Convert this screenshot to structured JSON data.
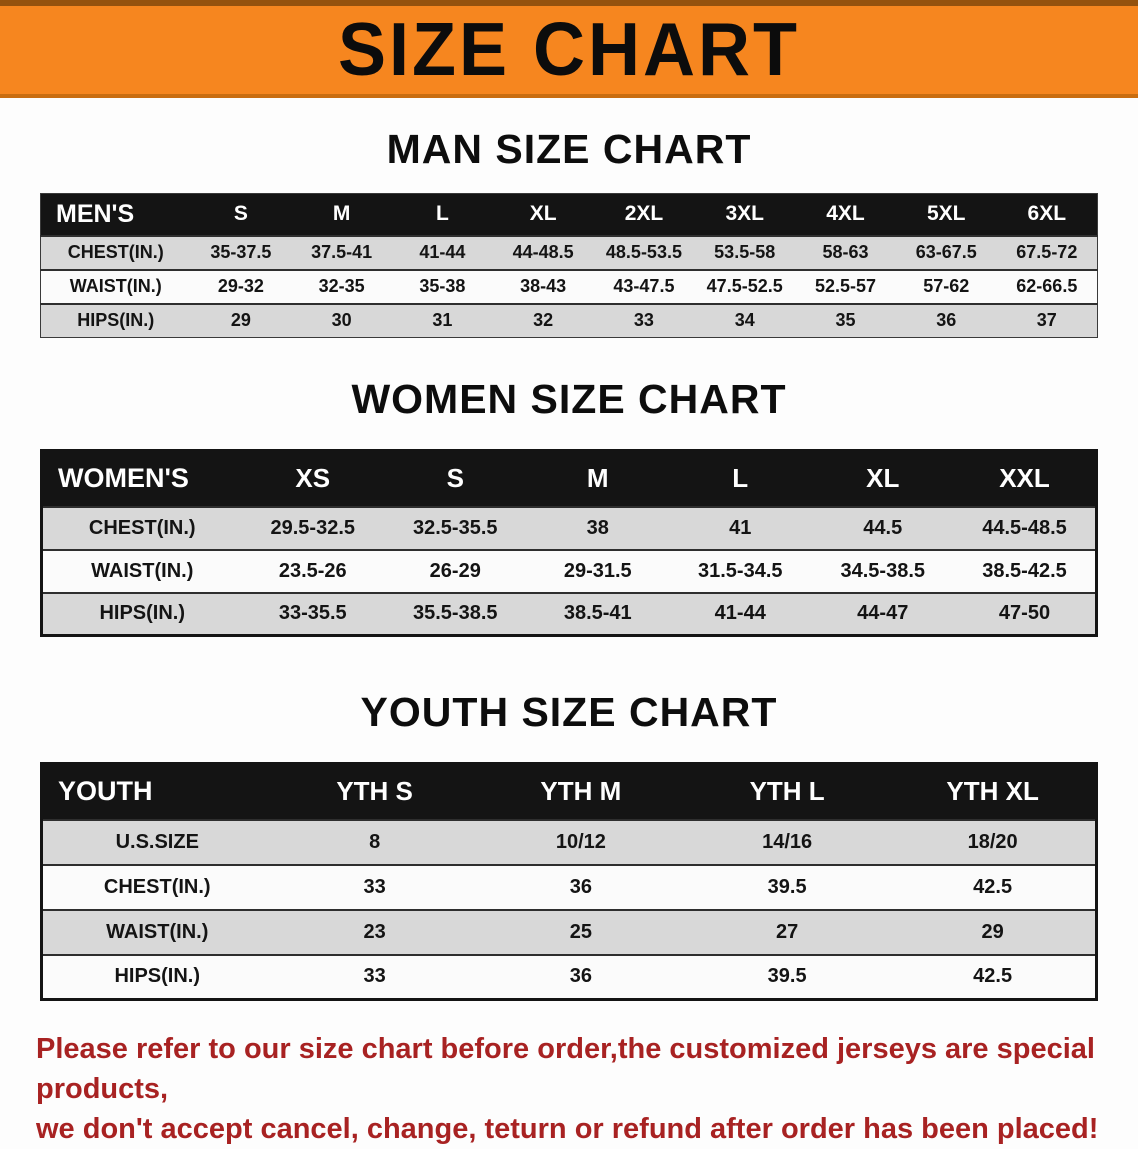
{
  "banner": {
    "title": "SIZE CHART"
  },
  "men_section": {
    "title": "MAN SIZE CHART",
    "table": {
      "header": [
        "MEN'S",
        "S",
        "M",
        "L",
        "XL",
        "2XL",
        "3XL",
        "4XL",
        "5XL",
        "6XL"
      ],
      "rows": [
        [
          "CHEST(IN.)",
          "35-37.5",
          "37.5-41",
          "41-44",
          "44-48.5",
          "48.5-53.5",
          "53.5-58",
          "58-63",
          "63-67.5",
          "67.5-72"
        ],
        [
          "WAIST(IN.)",
          "29-32",
          "32-35",
          "35-38",
          "38-43",
          "43-47.5",
          "47.5-52.5",
          "52.5-57",
          "57-62",
          "62-66.5"
        ],
        [
          "HIPS(IN.)",
          "29",
          "30",
          "31",
          "32",
          "33",
          "34",
          "35",
          "36",
          "37"
        ]
      ]
    }
  },
  "women_section": {
    "title": "WOMEN SIZE CHART",
    "table": {
      "header": [
        "WOMEN'S",
        "XS",
        "S",
        "M",
        "L",
        "XL",
        "XXL"
      ],
      "rows": [
        [
          "CHEST(IN.)",
          "29.5-32.5",
          "32.5-35.5",
          "38",
          "41",
          "44.5",
          "44.5-48.5"
        ],
        [
          "WAIST(IN.)",
          "23.5-26",
          "26-29",
          "29-31.5",
          "31.5-34.5",
          "34.5-38.5",
          "38.5-42.5"
        ],
        [
          "HIPS(IN.)",
          "33-35.5",
          "35.5-38.5",
          "38.5-41",
          "41-44",
          "44-47",
          "47-50"
        ]
      ]
    }
  },
  "youth_section": {
    "title": "YOUTH SIZE CHART",
    "table": {
      "header": [
        "YOUTH",
        "YTH S",
        "YTH M",
        "YTH L",
        "YTH XL"
      ],
      "rows": [
        [
          "U.S.SIZE",
          "8",
          "10/12",
          "14/16",
          "18/20"
        ],
        [
          "CHEST(IN.)",
          "33",
          "36",
          "39.5",
          "42.5"
        ],
        [
          "WAIST(IN.)",
          "23",
          "25",
          "27",
          "29"
        ],
        [
          "HIPS(IN.)",
          "33",
          "36",
          "39.5",
          "42.5"
        ]
      ]
    }
  },
  "footer": {
    "line1": "Please refer to our size chart before order,the customized jerseys are special products,",
    "line2": "we don't accept cancel, change, teturn or refund after order has been placed!"
  },
  "colors": {
    "banner_orange": "#f6861f",
    "table_header_black": "#141414",
    "row_gray": "#d8d8d8",
    "note_red": "#a82222"
  }
}
